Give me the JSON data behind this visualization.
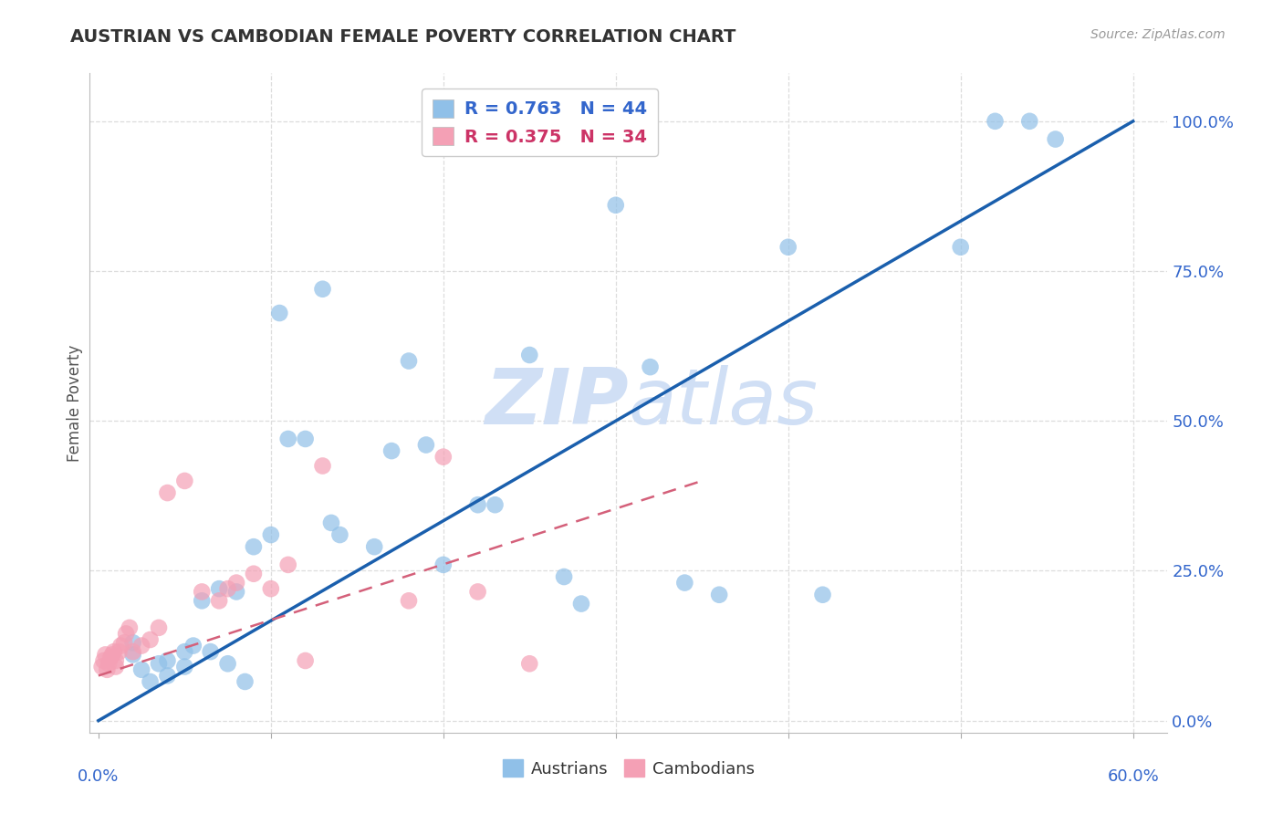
{
  "title": "AUSTRIAN VS CAMBODIAN FEMALE POVERTY CORRELATION CHART",
  "source": "Source: ZipAtlas.com",
  "ylabel": "Female Poverty",
  "ytick_labels": [
    "0.0%",
    "25.0%",
    "50.0%",
    "75.0%",
    "100.0%"
  ],
  "ytick_values": [
    0.0,
    0.25,
    0.5,
    0.75,
    1.0
  ],
  "xtick_values": [
    0.0,
    0.1,
    0.2,
    0.3,
    0.4,
    0.5,
    0.6
  ],
  "xlim": [
    -0.005,
    0.62
  ],
  "ylim": [
    -0.02,
    1.08
  ],
  "legend_austrians_label": "R = 0.763   N = 44",
  "legend_cambodians_label": "R = 0.375   N = 34",
  "austrians_color": "#90C0E8",
  "cambodians_color": "#F4A0B5",
  "line_blue": "#1A5FAD",
  "line_pink_dashed": "#D4607A",
  "watermark_zip": "ZIP",
  "watermark_atlas": "atlas",
  "watermark_color": "#D0DFF5",
  "background_color": "#FFFFFF",
  "title_color": "#333333",
  "source_color": "#999999",
  "ylabel_color": "#555555",
  "grid_color": "#DDDDDD",
  "tick_label_color": "#3366CC",
  "austrians_x": [
    0.02,
    0.02,
    0.03,
    0.025,
    0.035,
    0.04,
    0.04,
    0.05,
    0.05,
    0.055,
    0.06,
    0.065,
    0.07,
    0.075,
    0.08,
    0.085,
    0.09,
    0.1,
    0.105,
    0.11,
    0.12,
    0.13,
    0.135,
    0.14,
    0.16,
    0.17,
    0.18,
    0.19,
    0.2,
    0.22,
    0.23,
    0.25,
    0.27,
    0.28,
    0.3,
    0.32,
    0.34,
    0.36,
    0.4,
    0.42,
    0.5,
    0.52,
    0.54,
    0.555
  ],
  "austrians_y": [
    0.11,
    0.13,
    0.065,
    0.085,
    0.095,
    0.075,
    0.1,
    0.09,
    0.115,
    0.125,
    0.2,
    0.115,
    0.22,
    0.095,
    0.215,
    0.065,
    0.29,
    0.31,
    0.68,
    0.47,
    0.47,
    0.72,
    0.33,
    0.31,
    0.29,
    0.45,
    0.6,
    0.46,
    0.26,
    0.36,
    0.36,
    0.61,
    0.24,
    0.195,
    0.86,
    0.59,
    0.23,
    0.21,
    0.79,
    0.21,
    0.79,
    1.0,
    1.0,
    0.97
  ],
  "cambodians_x": [
    0.002,
    0.003,
    0.004,
    0.005,
    0.006,
    0.007,
    0.008,
    0.009,
    0.01,
    0.01,
    0.012,
    0.013,
    0.015,
    0.016,
    0.018,
    0.02,
    0.025,
    0.03,
    0.035,
    0.04,
    0.05,
    0.06,
    0.07,
    0.075,
    0.08,
    0.09,
    0.1,
    0.11,
    0.12,
    0.13,
    0.18,
    0.2,
    0.22,
    0.25
  ],
  "cambodians_y": [
    0.09,
    0.1,
    0.11,
    0.085,
    0.095,
    0.105,
    0.11,
    0.115,
    0.09,
    0.1,
    0.115,
    0.125,
    0.13,
    0.145,
    0.155,
    0.115,
    0.125,
    0.135,
    0.155,
    0.38,
    0.4,
    0.215,
    0.2,
    0.22,
    0.23,
    0.245,
    0.22,
    0.26,
    0.1,
    0.425,
    0.2,
    0.44,
    0.215,
    0.095
  ],
  "blue_line_x0": 0.0,
  "blue_line_y0": 0.0,
  "blue_line_x1": 0.6,
  "blue_line_y1": 1.0,
  "pink_line_x0": 0.0,
  "pink_line_y0": 0.075,
  "pink_line_x1": 0.35,
  "pink_line_y1": 0.4
}
